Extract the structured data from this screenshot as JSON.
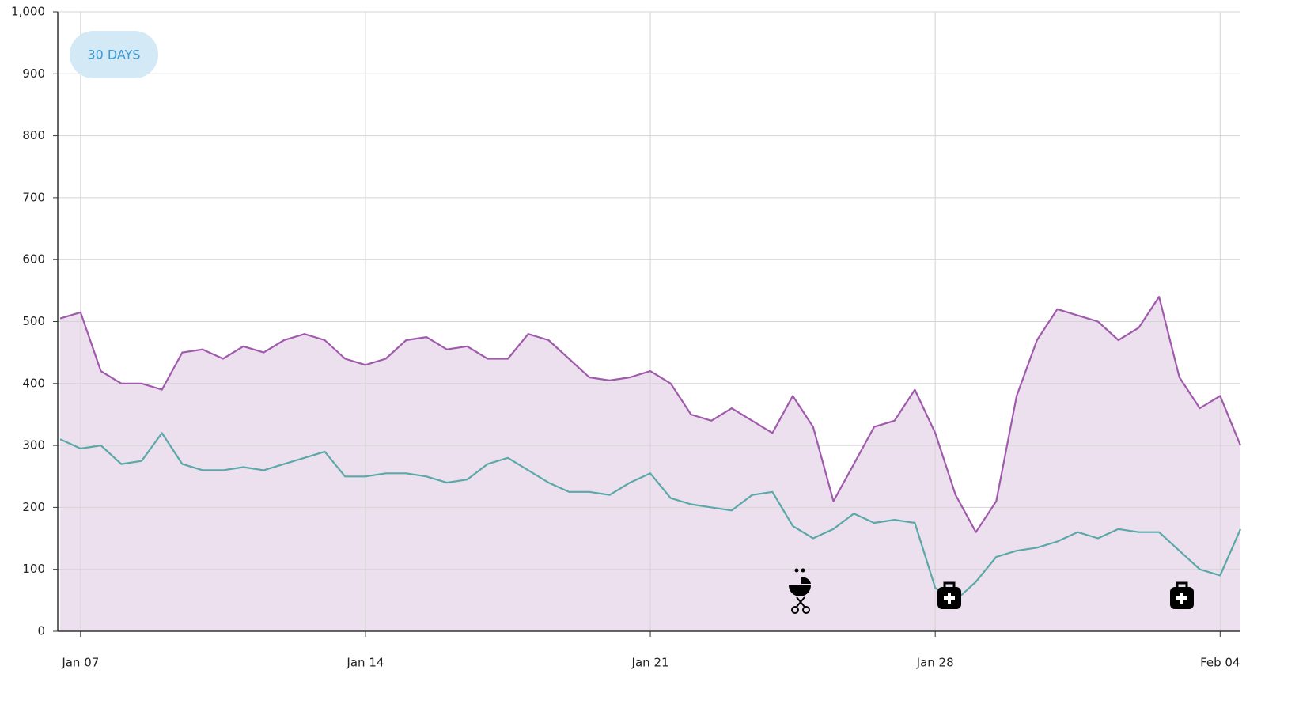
{
  "chart_data": {
    "type": "line",
    "button": "30 DAYS",
    "x": [
      6.5,
      7,
      7.5,
      8,
      8.5,
      9,
      9.5,
      10,
      10.5,
      11,
      11.5,
      12,
      12.5,
      13,
      13.5,
      14,
      14.5,
      15,
      15.5,
      16,
      16.5,
      17,
      17.5,
      18,
      18.5,
      19,
      19.5,
      20,
      20.5,
      21,
      21.5,
      22,
      22.5,
      23,
      23.5,
      24,
      24.5,
      25,
      25.5,
      26,
      26.5,
      27,
      27.5,
      28,
      28.5,
      29,
      29.5,
      30,
      30.5,
      31,
      31.5,
      32,
      32.5,
      33,
      33.5,
      34,
      34.5,
      35,
      35.5
    ],
    "series": [
      {
        "color": "#a05aac",
        "fill": "#ede0ee",
        "values": [
          505,
          515,
          420,
          400,
          400,
          390,
          450,
          455,
          440,
          460,
          450,
          470,
          480,
          470,
          440,
          430,
          440,
          470,
          475,
          455,
          460,
          440,
          440,
          480,
          470,
          440,
          410,
          405,
          410,
          420,
          400,
          350,
          340,
          360,
          340,
          320,
          380,
          330,
          210,
          270,
          330,
          340,
          390,
          320,
          220,
          160,
          210,
          380,
          470,
          520,
          510,
          500,
          470,
          490,
          540,
          410,
          360,
          380,
          300
        ]
      },
      {
        "color": "#5aa8a8",
        "values": [
          310,
          295,
          300,
          270,
          275,
          320,
          270,
          260,
          260,
          265,
          260,
          270,
          280,
          290,
          250,
          250,
          255,
          255,
          250,
          240,
          245,
          270,
          280,
          260,
          240,
          225,
          225,
          220,
          240,
          255,
          215,
          205,
          200,
          195,
          220,
          225,
          170,
          150,
          165,
          190,
          175,
          180,
          175,
          70,
          50,
          80,
          120,
          130,
          135,
          145,
          160,
          150,
          165,
          160,
          160,
          130,
          100,
          90,
          165
        ]
      }
    ],
    "xlim": [
      6.44,
      35.5
    ],
    "xticks": [
      {
        "value": 7,
        "label": "Jan 07"
      },
      {
        "value": 14,
        "label": "Jan 14"
      },
      {
        "value": 21,
        "label": "Jan 21"
      },
      {
        "value": 28,
        "label": "Jan 28"
      },
      {
        "value": 35,
        "label": "Feb 04"
      }
    ],
    "ylim": [
      0,
      1000
    ],
    "yticks": [
      0,
      100,
      200,
      300,
      400,
      500,
      600,
      700,
      800,
      900,
      {
        "value": 1000,
        "label": "1,000"
      }
    ],
    "grid": true
  }
}
